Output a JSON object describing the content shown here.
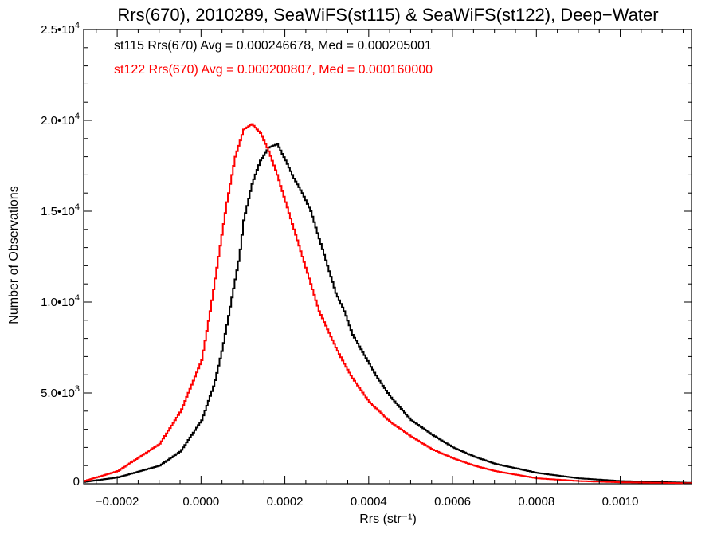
{
  "chart_data": {
    "type": "line",
    "title": "Rrs(670), 2010289, SeaWiFS(st115) & SeaWiFS(st122), Deep−Water",
    "xlabel": "Rrs (str⁻¹)",
    "ylabel": "Number of Observations",
    "xlim": [
      -0.00028,
      0.00117
    ],
    "ylim": [
      0,
      25000
    ],
    "x_ticks": [
      -0.0002,
      0.0,
      0.0002,
      0.0004,
      0.0006,
      0.0008,
      0.001
    ],
    "x_tick_labels": [
      "−0.0002",
      "0.0000",
      "0.0002",
      "0.0004",
      "0.0006",
      "0.0008",
      "0.0010"
    ],
    "y_ticks": [
      0,
      5000,
      10000,
      15000,
      20000,
      25000
    ],
    "y_tick_labels": [
      {
        "mant": "0",
        "exp": ""
      },
      {
        "mant": "5.0•10",
        "exp": "3"
      },
      {
        "mant": "1.0•10",
        "exp": "4"
      },
      {
        "mant": "1.5•10",
        "exp": "4"
      },
      {
        "mant": "2.0•10",
        "exp": "4"
      },
      {
        "mant": "2.5•10",
        "exp": "4"
      }
    ],
    "grid": false,
    "series": [
      {
        "name": "st115",
        "color": "#000000",
        "annotation": "st115 Rrs(670) Avg = 0.000246678, Med = 0.000205001",
        "x": [
          -0.00028,
          -0.0002,
          -0.0001,
          -5e-05,
          0.0,
          3e-05,
          5e-05,
          7e-05,
          9e-05,
          0.0001,
          0.00012,
          0.00014,
          0.00016,
          0.00018,
          0.0002,
          0.00022,
          0.00024,
          0.00026,
          0.00028,
          0.0003,
          0.00032,
          0.00034,
          0.00036,
          0.0004,
          0.00042,
          0.00045,
          0.0005,
          0.00055,
          0.0006,
          0.00065,
          0.0007,
          0.0008,
          0.0009,
          0.001,
          0.00117
        ],
        "y": [
          100,
          350,
          1000,
          1800,
          3500,
          5500,
          7500,
          10000,
          12500,
          14500,
          16500,
          17800,
          18500,
          18700,
          17800,
          16800,
          16000,
          15000,
          13500,
          12000,
          10500,
          9500,
          8200,
          6600,
          5800,
          4800,
          3500,
          2700,
          2000,
          1500,
          1100,
          600,
          300,
          150,
          50
        ]
      },
      {
        "name": "st122",
        "color": "#ff0000",
        "annotation": "st122 Rrs(670) Avg = 0.000200807, Med = 0.000160000",
        "x": [
          -0.00028,
          -0.0002,
          -0.0001,
          -5e-05,
          0.0,
          2e-05,
          4e-05,
          6e-05,
          8e-05,
          0.0001,
          0.00012,
          0.00014,
          0.00016,
          0.00018,
          0.0002,
          0.00022,
          0.00024,
          0.00026,
          0.00028,
          0.0003,
          0.00032,
          0.00034,
          0.00036,
          0.0004,
          0.00045,
          0.0005,
          0.00055,
          0.0006,
          0.00065,
          0.0007,
          0.0008,
          0.0009,
          0.001,
          0.00117
        ],
        "y": [
          150,
          700,
          2200,
          4000,
          6800,
          9500,
          12500,
          15500,
          18000,
          19500,
          19800,
          19300,
          18300,
          17000,
          15500,
          14000,
          12500,
          11000,
          9500,
          8500,
          7500,
          6600,
          5800,
          4500,
          3400,
          2600,
          1900,
          1400,
          1000,
          700,
          300,
          150,
          80,
          30
        ]
      }
    ]
  }
}
